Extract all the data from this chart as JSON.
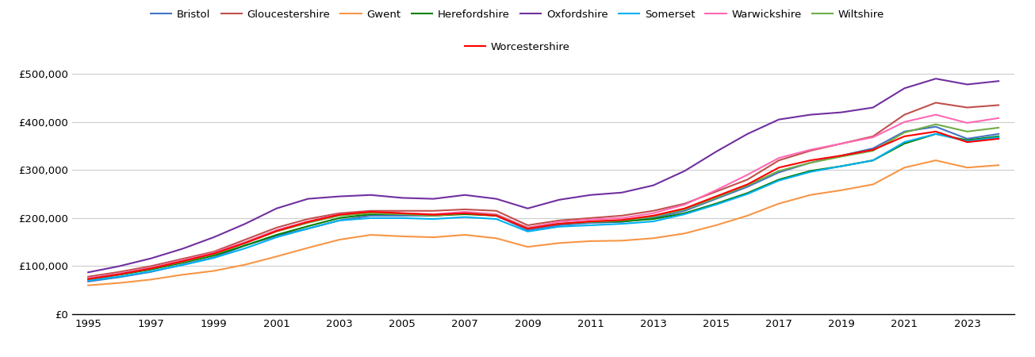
{
  "years": [
    1995,
    1996,
    1997,
    1998,
    1999,
    2000,
    2001,
    2002,
    2003,
    2004,
    2005,
    2006,
    2007,
    2008,
    2009,
    2010,
    2011,
    2012,
    2013,
    2014,
    2015,
    2016,
    2017,
    2018,
    2019,
    2020,
    2021,
    2022,
    2023,
    2024
  ],
  "series_order": [
    "Bristol",
    "Gloucestershire",
    "Gwent",
    "Herefordshire",
    "Oxfordshire",
    "Somerset",
    "Warwickshire",
    "Wiltshire",
    "Worcestershire"
  ],
  "series_colors": {
    "Bristol": "#4472C4",
    "Gloucestershire": "#C0504D",
    "Gwent": "#F79646",
    "Herefordshire": "#008000",
    "Oxfordshire": "#7030A0",
    "Somerset": "#00B0F0",
    "Warwickshire": "#FF69B4",
    "Wiltshire": "#70AD47",
    "Worcestershire": "#FF0000"
  },
  "series": {
    "Bristol": [
      68000,
      77000,
      88000,
      103000,
      118000,
      143000,
      163000,
      178000,
      195000,
      205000,
      205000,
      205000,
      210000,
      205000,
      175000,
      185000,
      190000,
      192000,
      200000,
      215000,
      240000,
      265000,
      295000,
      315000,
      330000,
      345000,
      380000,
      390000,
      365000,
      375000
    ],
    "Gloucestershire": [
      78000,
      88000,
      100000,
      115000,
      130000,
      155000,
      180000,
      198000,
      210000,
      215000,
      215000,
      215000,
      218000,
      215000,
      185000,
      195000,
      200000,
      205000,
      215000,
      230000,
      255000,
      280000,
      320000,
      340000,
      355000,
      370000,
      415000,
      440000,
      430000,
      435000
    ],
    "Gwent": [
      60000,
      65000,
      72000,
      82000,
      90000,
      103000,
      120000,
      138000,
      155000,
      165000,
      162000,
      160000,
      165000,
      158000,
      140000,
      148000,
      152000,
      153000,
      158000,
      168000,
      185000,
      205000,
      230000,
      248000,
      258000,
      270000,
      305000,
      320000,
      305000,
      310000
    ],
    "Herefordshire": [
      72000,
      82000,
      93000,
      107000,
      122000,
      143000,
      165000,
      183000,
      200000,
      208000,
      208000,
      205000,
      208000,
      205000,
      180000,
      188000,
      192000,
      193000,
      198000,
      210000,
      230000,
      252000,
      280000,
      298000,
      308000,
      320000,
      355000,
      375000,
      362000,
      370000
    ],
    "Oxfordshire": [
      87000,
      100000,
      116000,
      136000,
      160000,
      188000,
      220000,
      240000,
      245000,
      248000,
      242000,
      240000,
      248000,
      240000,
      220000,
      238000,
      248000,
      253000,
      268000,
      298000,
      338000,
      375000,
      405000,
      415000,
      420000,
      430000,
      470000,
      490000,
      478000,
      485000
    ],
    "Somerset": [
      70000,
      78000,
      89000,
      102000,
      117000,
      137000,
      160000,
      178000,
      195000,
      200000,
      200000,
      198000,
      202000,
      198000,
      172000,
      182000,
      185000,
      188000,
      193000,
      208000,
      228000,
      250000,
      278000,
      296000,
      308000,
      320000,
      358000,
      375000,
      360000,
      368000
    ],
    "Warwickshire": [
      75000,
      85000,
      97000,
      112000,
      128000,
      150000,
      175000,
      193000,
      208000,
      213000,
      210000,
      208000,
      213000,
      208000,
      180000,
      192000,
      197000,
      200000,
      210000,
      228000,
      258000,
      290000,
      325000,
      342000,
      355000,
      368000,
      400000,
      415000,
      398000,
      408000
    ],
    "Wiltshire": [
      73000,
      83000,
      95000,
      109000,
      125000,
      148000,
      172000,
      190000,
      205000,
      210000,
      208000,
      205000,
      210000,
      206000,
      178000,
      188000,
      192000,
      195000,
      203000,
      218000,
      242000,
      268000,
      298000,
      315000,
      328000,
      340000,
      378000,
      395000,
      380000,
      388000
    ],
    "Worcestershire": [
      73000,
      83000,
      95000,
      110000,
      126000,
      148000,
      173000,
      192000,
      207000,
      213000,
      210000,
      207000,
      210000,
      205000,
      178000,
      188000,
      193000,
      196000,
      205000,
      220000,
      245000,
      270000,
      305000,
      320000,
      330000,
      342000,
      370000,
      380000,
      358000,
      365000
    ]
  },
  "ylim": [
    0,
    520000
  ],
  "yticks": [
    0,
    100000,
    200000,
    300000,
    400000,
    500000
  ],
  "xticks": [
    1995,
    1997,
    1999,
    2001,
    2003,
    2005,
    2007,
    2009,
    2011,
    2013,
    2015,
    2017,
    2019,
    2021,
    2023
  ],
  "xlim": [
    1994.5,
    2024.5
  ],
  "background_color": "#ffffff",
  "grid_color": "#cccccc",
  "linewidth": 1.5,
  "tick_fontsize": 9.5,
  "legend_fontsize": 9.5
}
